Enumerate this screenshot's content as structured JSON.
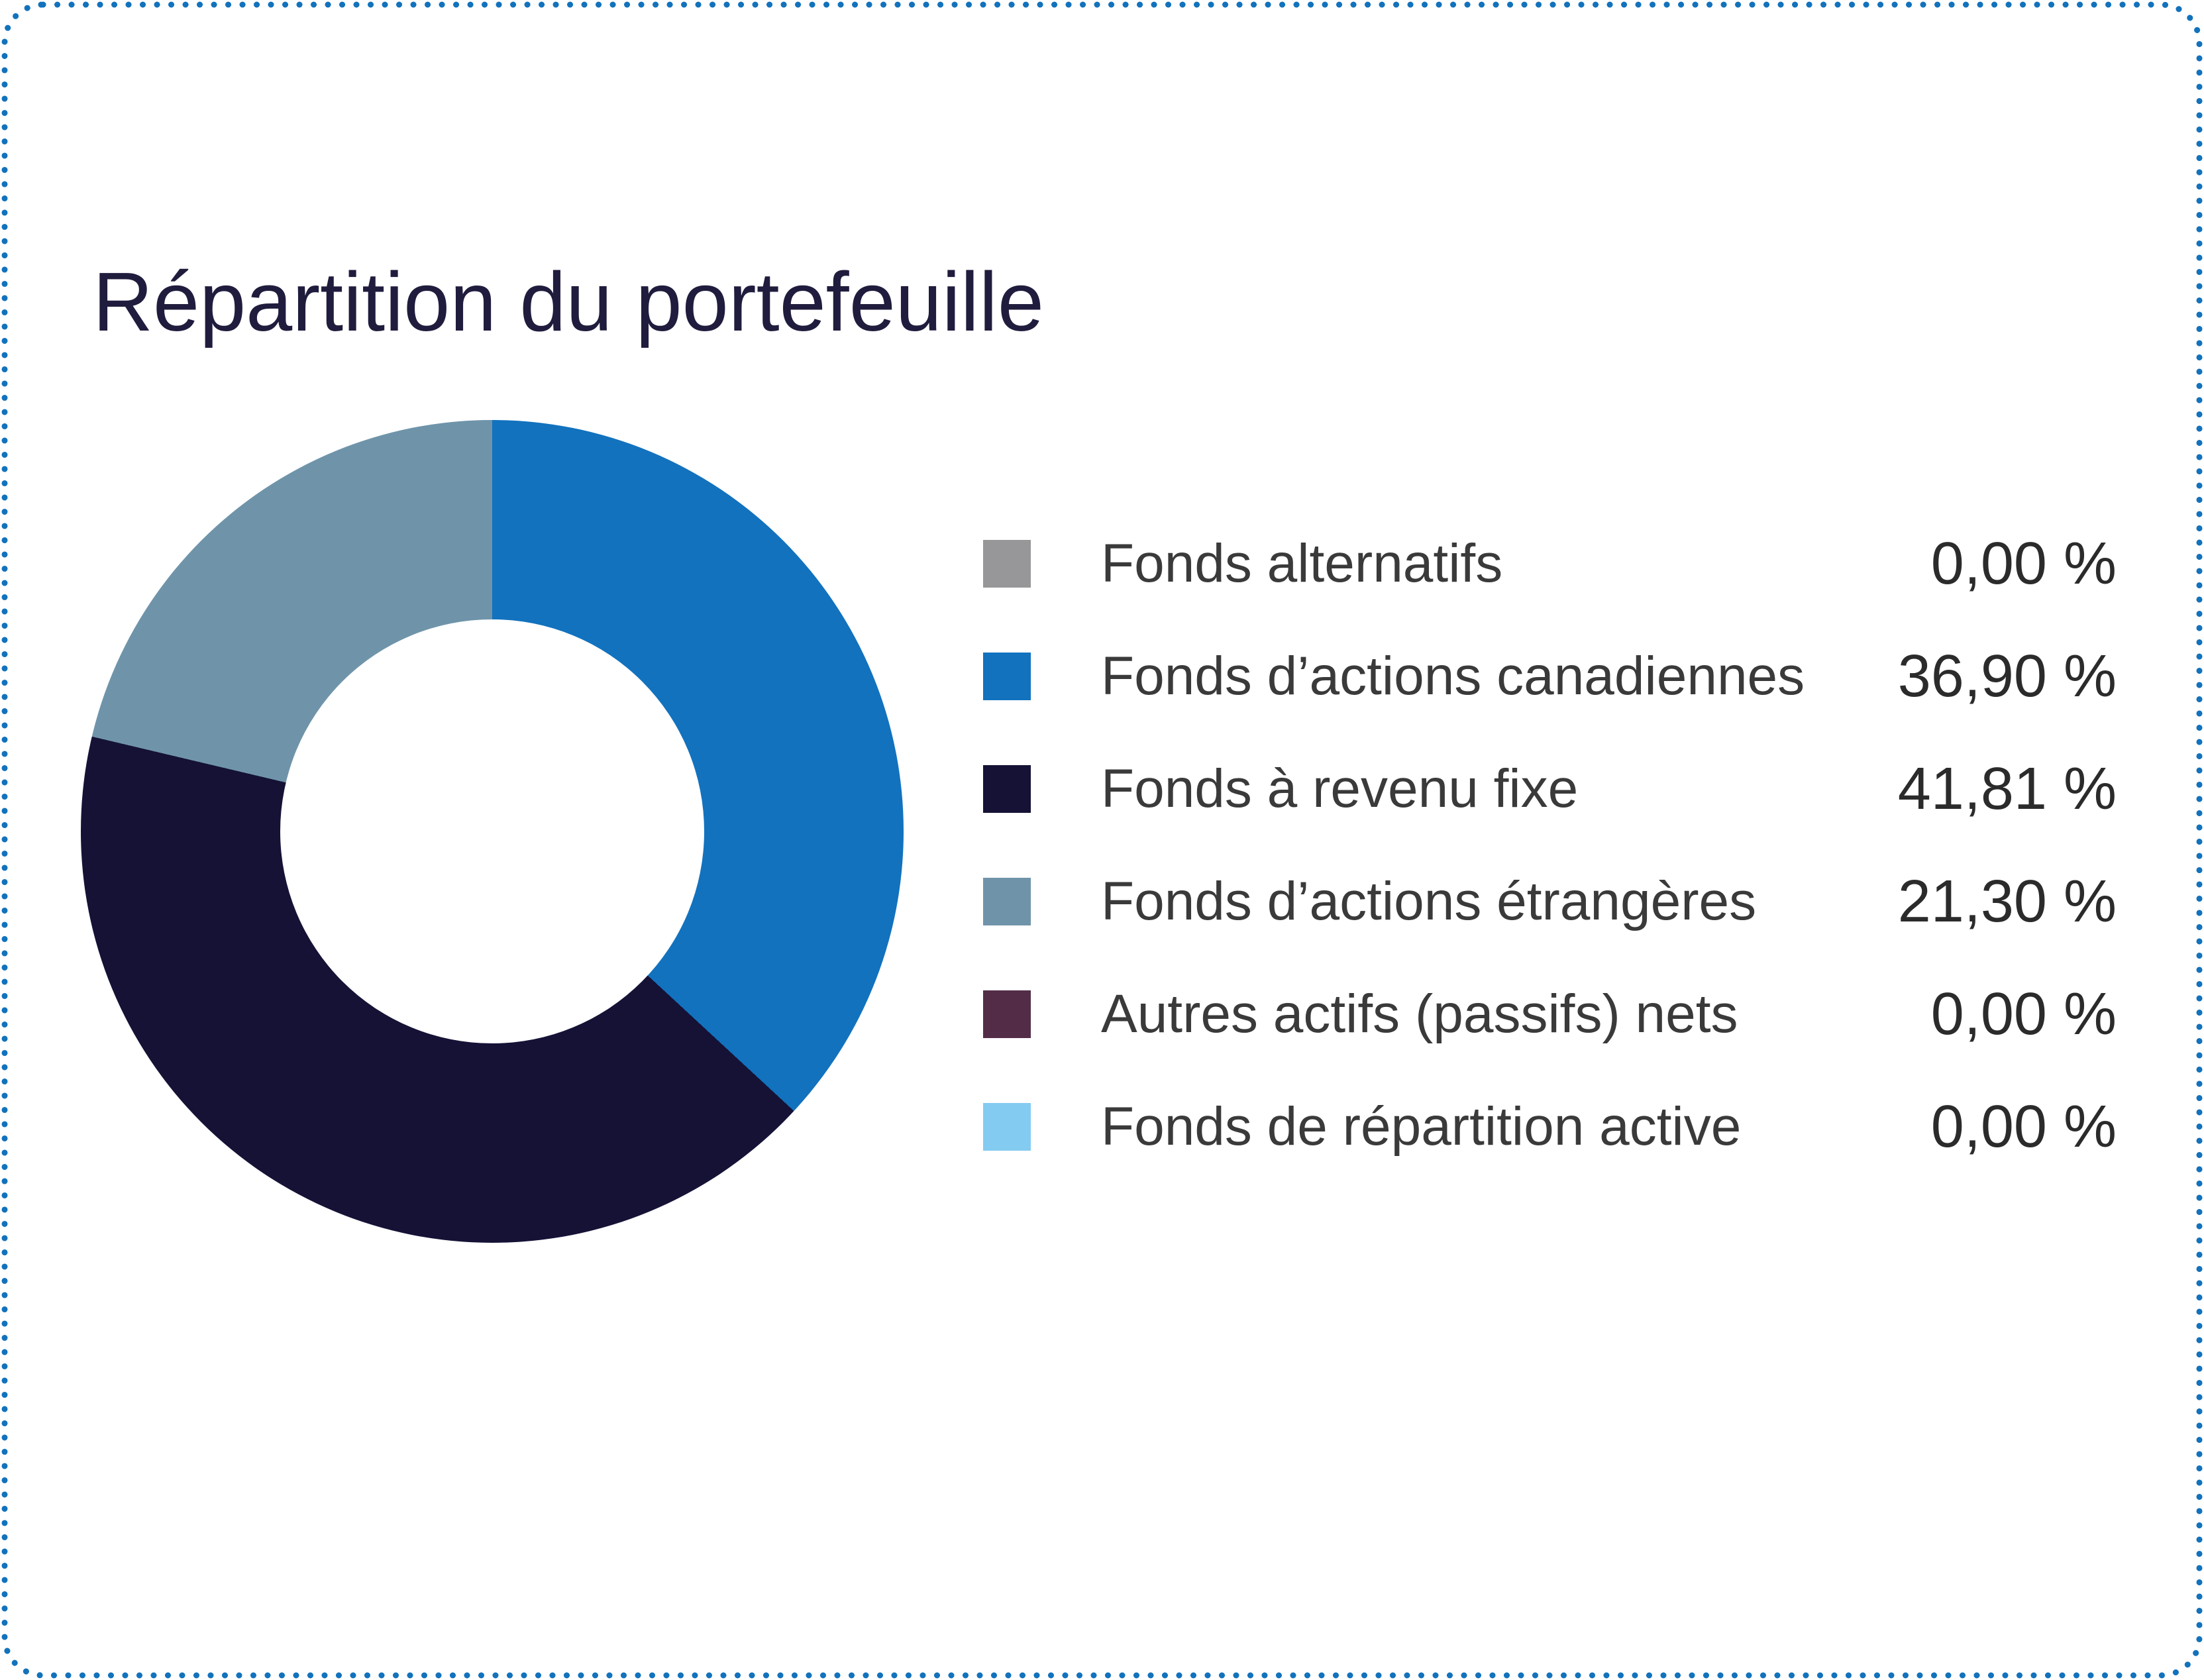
{
  "title": "Répartition du portefeuille",
  "colors": {
    "border_dots": "#1272BC",
    "title_text": "#1F1C3D",
    "label_text": "#3A3A3A",
    "value_text": "#2B2B2B",
    "background": "#FFFFFF",
    "donut_hole": "#FFFFFF"
  },
  "legend": {
    "items": [
      {
        "label": "Fonds alternatifs",
        "value_label": "0,00 %",
        "color": "#979799"
      },
      {
        "label": "Fonds d’actions canadiennes",
        "value_label": "36,90 %",
        "color": "#1272BE"
      },
      {
        "label": "Fonds à revenu fixe",
        "value_label": "41,81 %",
        "color": "#151236"
      },
      {
        "label": "Fonds d’actions étrangères",
        "value_label": "21,30 %",
        "color": "#6F94AA"
      },
      {
        "label": "Autres actifs (passifs) nets",
        "value_label": "0,00 %",
        "color": "#532D48"
      },
      {
        "label": "Fonds de répartition active",
        "value_label": "0,00 %",
        "color": "#84CBF1"
      }
    ]
  },
  "chart_data": {
    "type": "pie",
    "subtype": "donut",
    "title": "Répartition du portefeuille",
    "categories": [
      "Fonds alternatifs",
      "Fonds d’actions canadiennes",
      "Fonds à revenu fixe",
      "Fonds d’actions étrangères",
      "Autres actifs (passifs) nets",
      "Fonds de répartition active"
    ],
    "values": [
      0.0,
      36.9,
      41.81,
      21.3,
      0.0,
      0.0
    ],
    "value_labels": [
      "0,00 %",
      "36,90 %",
      "41,81 %",
      "21,30 %",
      "0,00 %",
      "0,00 %"
    ],
    "colors": [
      "#979799",
      "#1272BE",
      "#151236",
      "#6F94AA",
      "#532D48",
      "#84CBF1"
    ],
    "unit": "%",
    "start_angle_deg": 0,
    "direction": "clockwise",
    "inner_radius_ratio": 0.515,
    "legend_position": "right",
    "grid": false
  }
}
